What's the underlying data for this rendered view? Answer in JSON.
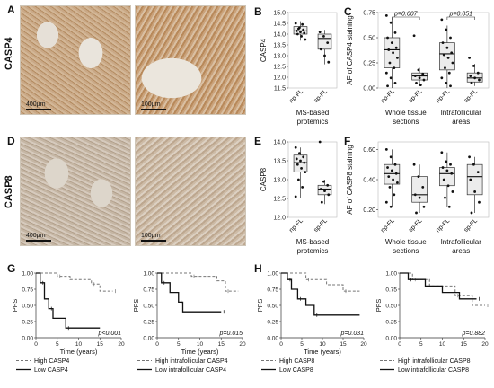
{
  "row_labels": {
    "top": "CASP4",
    "bottom": "CASP8"
  },
  "panel_letters": {
    "A": "A",
    "B": "B",
    "C": "C",
    "D": "D",
    "E": "E",
    "F": "F",
    "G": "G",
    "H": "H"
  },
  "scalebars": {
    "a_left": "400µm",
    "a_right": "100µm",
    "d_left": "400µm",
    "d_right": "100µm"
  },
  "chart_data": [
    {
      "id": "B",
      "type": "box",
      "ylabel": "CASP4",
      "ylim": [
        11.5,
        15.0
      ],
      "yticks": [
        "11.5",
        "12.0",
        "12.5",
        "13.0",
        "13.5",
        "14.0",
        "14.5",
        "15.0"
      ],
      "categories": [
        "np-FL",
        "sp-FL"
      ],
      "xcaption": "MS-based\nprotemics",
      "boxes": [
        {
          "q1": 14.0,
          "median": 14.15,
          "q3": 14.35,
          "whislo": 13.7,
          "whishi": 14.6
        },
        {
          "q1": 13.3,
          "median": 13.8,
          "q3": 14.0,
          "whislo": 12.6,
          "whishi": 14.2
        }
      ],
      "points": [
        [
          14.5,
          14.3,
          14.2,
          14.15,
          14.1,
          14.05,
          14.0,
          13.9,
          13.75,
          14.25,
          14.45
        ],
        [
          14.1,
          13.9,
          13.6,
          13.3,
          13.0,
          12.7
        ]
      ]
    },
    {
      "id": "C",
      "type": "box",
      "ylabel": "AF of CASP4 staining",
      "ylim": [
        0.0,
        0.75
      ],
      "yticks": [
        "0.00",
        "0.25",
        "0.50",
        "0.75"
      ],
      "categories": [
        "np-FL",
        "sp-FL",
        "np-FL",
        "sp-FL"
      ],
      "groups": [
        "Whole tissue\nsections",
        "Intrafollicular\nareas"
      ],
      "pvalues": [
        "p=0.007",
        "p=0.051"
      ],
      "boxes": [
        {
          "q1": 0.2,
          "median": 0.38,
          "q3": 0.5,
          "whislo": 0.0,
          "whishi": 0.7
        },
        {
          "q1": 0.08,
          "median": 0.12,
          "q3": 0.15,
          "whislo": 0.02,
          "whishi": 0.2
        },
        {
          "q1": 0.18,
          "median": 0.34,
          "q3": 0.45,
          "whislo": 0.0,
          "whishi": 0.62
        },
        {
          "q1": 0.06,
          "median": 0.1,
          "q3": 0.15,
          "whislo": 0.02,
          "whishi": 0.24
        }
      ],
      "points": [
        [
          0.72,
          0.65,
          0.55,
          0.5,
          0.45,
          0.4,
          0.38,
          0.35,
          0.3,
          0.25,
          0.2,
          0.15,
          0.1,
          0.05,
          0.02
        ],
        [
          0.52,
          0.18,
          0.14,
          0.12,
          0.1,
          0.08,
          0.05,
          0.03
        ],
        [
          0.68,
          0.58,
          0.5,
          0.45,
          0.4,
          0.35,
          0.33,
          0.3,
          0.25,
          0.2,
          0.15,
          0.1,
          0.05,
          0.02
        ],
        [
          0.3,
          0.22,
          0.15,
          0.12,
          0.1,
          0.08,
          0.05
        ]
      ]
    },
    {
      "id": "E",
      "type": "box",
      "ylabel": "CASP8",
      "ylim": [
        12.0,
        14.0
      ],
      "yticks": [
        "12.0",
        "12.5",
        "13.0",
        "13.5",
        "14.0"
      ],
      "categories": [
        "np-FL",
        "sp-FL"
      ],
      "xcaption": "MS-based\nprotemics",
      "boxes": [
        {
          "q1": 13.2,
          "median": 13.45,
          "q3": 13.65,
          "whislo": 12.5,
          "whishi": 13.85
        },
        {
          "q1": 12.6,
          "median": 12.75,
          "q3": 12.85,
          "whislo": 12.35,
          "whishi": 13.0
        }
      ],
      "points": [
        [
          13.85,
          13.7,
          13.6,
          13.55,
          13.5,
          13.45,
          13.4,
          13.3,
          13.2,
          13.0,
          12.8,
          12.55
        ],
        [
          14.0,
          12.95,
          12.85,
          12.75,
          12.7,
          12.6,
          12.4
        ]
      ]
    },
    {
      "id": "F",
      "type": "box",
      "ylabel": "AF of CASP8 staining",
      "ylim": [
        0.15,
        0.65
      ],
      "yticks": [
        "0.20",
        "0.40",
        "0.60"
      ],
      "categories": [
        "np-FL",
        "sp-FL",
        "np-FL",
        "sp-FL"
      ],
      "groups": [
        "Whole tissue\nsections",
        "Intrafollicular\nareas"
      ],
      "boxes": [
        {
          "q1": 0.37,
          "median": 0.44,
          "q3": 0.5,
          "whislo": 0.22,
          "whishi": 0.6
        },
        {
          "q1": 0.25,
          "median": 0.3,
          "q3": 0.42,
          "whislo": 0.18,
          "whishi": 0.5
        },
        {
          "q1": 0.36,
          "median": 0.44,
          "q3": 0.48,
          "whislo": 0.22,
          "whishi": 0.58
        },
        {
          "q1": 0.3,
          "median": 0.42,
          "q3": 0.5,
          "whislo": 0.18,
          "whishi": 0.55
        }
      ],
      "points": [
        [
          0.6,
          0.55,
          0.5,
          0.48,
          0.46,
          0.44,
          0.42,
          0.4,
          0.38,
          0.35,
          0.3,
          0.25,
          0.22
        ],
        [
          0.5,
          0.42,
          0.35,
          0.3,
          0.28,
          0.22,
          0.18
        ],
        [
          0.58,
          0.52,
          0.5,
          0.48,
          0.46,
          0.44,
          0.4,
          0.36,
          0.32,
          0.28,
          0.22
        ],
        [
          0.55,
          0.5,
          0.45,
          0.4,
          0.32,
          0.25,
          0.18
        ]
      ]
    },
    {
      "id": "G1",
      "type": "survival",
      "ylabel": "PFS",
      "xlabel": "Time (years)",
      "xlim": [
        0,
        20
      ],
      "ylim": [
        0,
        1
      ],
      "xticks": [
        "0",
        "5",
        "10",
        "15",
        "20"
      ],
      "yticks": [
        "0.00",
        "0.25",
        "0.50",
        "0.75",
        "1.00"
      ],
      "pvalue": "p<0.001",
      "series": [
        {
          "name": "High CASP4",
          "dashed": true,
          "steps": [
            [
              0,
              1.0
            ],
            [
              5,
              0.95
            ],
            [
              8,
              0.9
            ],
            [
              13,
              0.83
            ],
            [
              15,
              0.72
            ],
            [
              18,
              0.72
            ]
          ]
        },
        {
          "name": "Low CASP4",
          "dashed": false,
          "steps": [
            [
              0,
              1.0
            ],
            [
              1,
              0.85
            ],
            [
              2,
              0.6
            ],
            [
              3,
              0.45
            ],
            [
              4,
              0.3
            ],
            [
              7,
              0.15
            ],
            [
              15,
              0.15
            ]
          ]
        }
      ]
    },
    {
      "id": "G2",
      "type": "survival",
      "ylabel": "PFS",
      "xlabel": "Time (years)",
      "xlim": [
        0,
        20
      ],
      "ylim": [
        0,
        1
      ],
      "xticks": [
        "0",
        "5",
        "10",
        "15",
        "20"
      ],
      "yticks": [
        "0.00",
        "0.25",
        "0.50",
        "0.75",
        "1.00"
      ],
      "pvalue": "p=0.015",
      "series": [
        {
          "name": "High intrafollicular CASP4",
          "dashed": true,
          "steps": [
            [
              0,
              1.0
            ],
            [
              8,
              0.95
            ],
            [
              14,
              0.88
            ],
            [
              16,
              0.72
            ],
            [
              19,
              0.72
            ]
          ]
        },
        {
          "name": "Low intrafollicular CASP4",
          "dashed": false,
          "steps": [
            [
              0,
              1.0
            ],
            [
              1,
              0.85
            ],
            [
              3,
              0.7
            ],
            [
              5,
              0.55
            ],
            [
              6,
              0.4
            ],
            [
              15,
              0.4
            ]
          ]
        }
      ]
    },
    {
      "id": "H1",
      "type": "survival",
      "ylabel": "PFS",
      "xlabel": "Time (years)",
      "xlim": [
        0,
        20
      ],
      "ylim": [
        0,
        1
      ],
      "xticks": [
        "0",
        "5",
        "10",
        "15",
        "20"
      ],
      "yticks": [
        "0.00",
        "0.25",
        "0.50",
        "0.75",
        "1.00"
      ],
      "pvalue": "p=0.031",
      "series": [
        {
          "name": "High CASP8",
          "dashed": true,
          "steps": [
            [
              0,
              1.0
            ],
            [
              6,
              0.9
            ],
            [
              11,
              0.82
            ],
            [
              15,
              0.72
            ],
            [
              19,
              0.72
            ]
          ]
        },
        {
          "name": "Low CASP8",
          "dashed": false,
          "steps": [
            [
              0,
              1.0
            ],
            [
              1.5,
              0.9
            ],
            [
              2.5,
              0.75
            ],
            [
              4,
              0.6
            ],
            [
              6,
              0.5
            ],
            [
              8,
              0.35
            ],
            [
              19,
              0.35
            ]
          ]
        }
      ]
    },
    {
      "id": "H2",
      "type": "survival",
      "ylabel": "PFS",
      "xlabel": "",
      "xlim": [
        0,
        20
      ],
      "ylim": [
        0,
        1
      ],
      "xticks": [
        "0",
        "5",
        "10",
        "15",
        "20"
      ],
      "yticks": [
        "0.00",
        "0.25",
        "0.50",
        "0.75",
        "1.00"
      ],
      "pvalue": "p=0.882",
      "series": [
        {
          "name": "High intrafollicular CASP8",
          "dashed": true,
          "steps": [
            [
              0,
              1.0
            ],
            [
              3,
              0.9
            ],
            [
              7,
              0.8
            ],
            [
              13,
              0.65
            ],
            [
              17,
              0.5
            ],
            [
              20,
              0.5
            ]
          ]
        },
        {
          "name": "Low intrafollicular CASP8",
          "dashed": false,
          "steps": [
            [
              0,
              1.0
            ],
            [
              2,
              0.9
            ],
            [
              6,
              0.8
            ],
            [
              10,
              0.7
            ],
            [
              14,
              0.6
            ],
            [
              18,
              0.6
            ]
          ]
        }
      ]
    }
  ]
}
